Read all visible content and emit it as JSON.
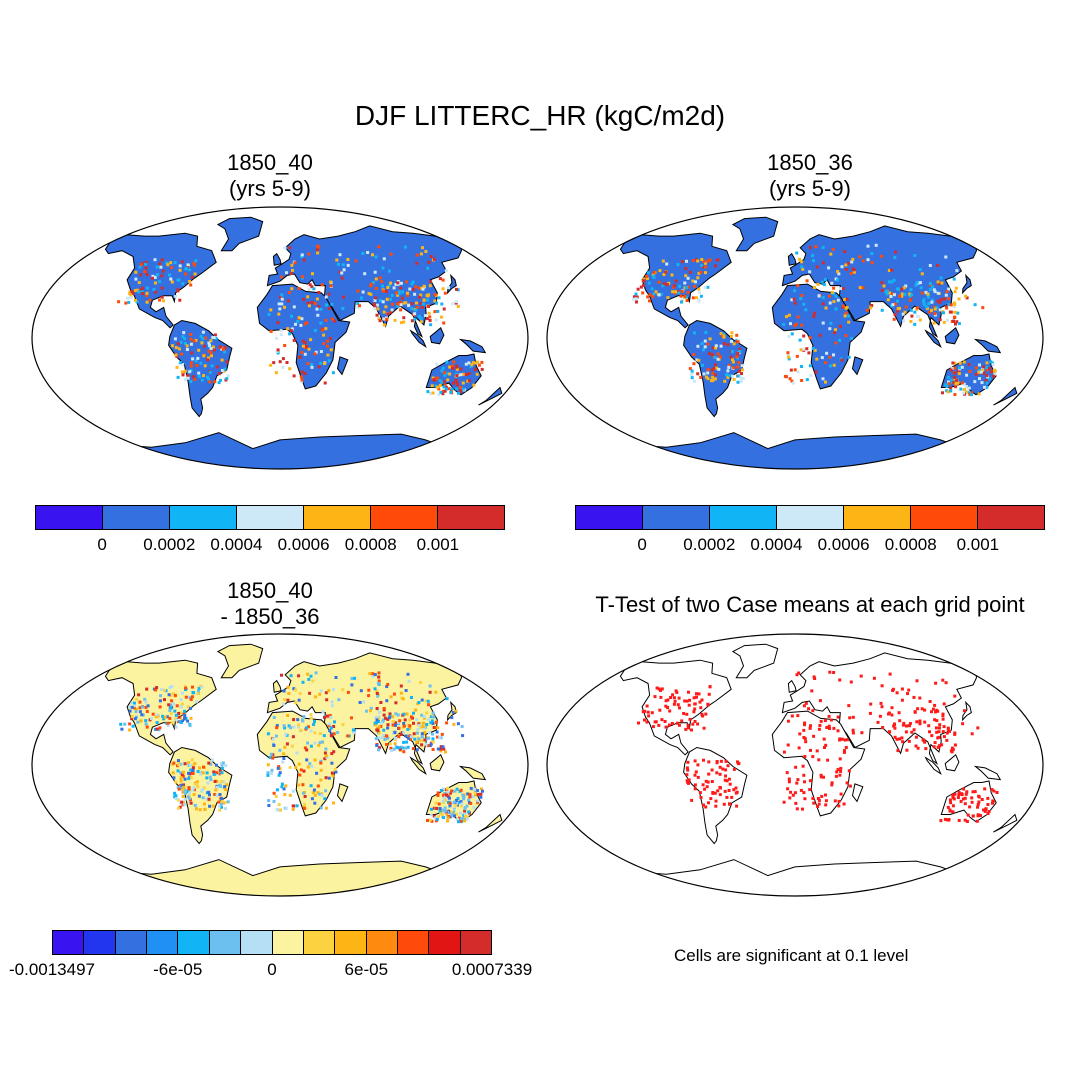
{
  "figure": {
    "title": "DJF LITTERC_HR (kgC/m2d)"
  },
  "panels": [
    {
      "id": "case1",
      "title": "1850_40\n(yrs 5-9)"
    },
    {
      "id": "case2",
      "title": "1850_36\n(yrs 5-9)"
    },
    {
      "id": "diff",
      "title": "1850_40\n- 1850_36"
    },
    {
      "id": "ttest",
      "title": "T-Test of two Case means at each grid point"
    }
  ],
  "colorbars": {
    "cases": {
      "colors": [
        "#3a14f0",
        "#3470e0",
        "#11b5f5",
        "#cde9f8",
        "#fdb515",
        "#ff4a0a",
        "#d42b2b"
      ],
      "tick_labels": [
        "0",
        "0.0002",
        "0.0004",
        "0.0006",
        "0.0008",
        "0.001"
      ]
    },
    "diff": {
      "colors": [
        "#3a14f0",
        "#2236f0",
        "#3470e0",
        "#2090f4",
        "#11b5f5",
        "#6cc0f0",
        "#b4dff5",
        "#fbf3a0",
        "#fdd240",
        "#fdb515",
        "#fe8a10",
        "#fe4a0a",
        "#e21515",
        "#d42b2b"
      ],
      "tick_labels": [
        "-0.0013497",
        "-6e-05",
        "0",
        "6e-05",
        "0.0007339"
      ]
    }
  },
  "note": "Cells are significant at 0.1 level"
}
